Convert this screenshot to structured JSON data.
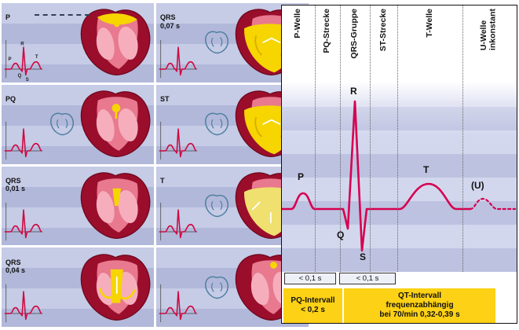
{
  "left_panel": {
    "panels": [
      {
        "label": "P",
        "sub": "",
        "phase": "atria",
        "outline_heart": false,
        "ecg_letters": true
      },
      {
        "label": "QRS",
        "sub": "0,07 s",
        "phase": "ventricles",
        "outline_heart": true,
        "ecg_letters": false
      },
      {
        "label": "PQ",
        "sub": "",
        "phase": "avnode",
        "outline_heart": true,
        "ecg_letters": false
      },
      {
        "label": "ST",
        "sub": "",
        "phase": "ventricles",
        "outline_heart": true,
        "ecg_letters": false
      },
      {
        "label": "QRS",
        "sub": "0,01 s",
        "phase": "septum-small",
        "outline_heart": false,
        "ecg_letters": false
      },
      {
        "label": "T",
        "sub": "",
        "phase": "ventricles-fading",
        "outline_heart": true,
        "ecg_letters": false
      },
      {
        "label": "QRS",
        "sub": "0,04 s",
        "phase": "septum-large",
        "outline_heart": false,
        "ecg_letters": false
      },
      {
        "label": "",
        "sub": "",
        "phase": "sanode",
        "outline_heart": true,
        "ecg_letters": false
      }
    ],
    "first_ecg_labels": [
      "R",
      "T",
      "P",
      "Q",
      "S"
    ]
  },
  "right_panel": {
    "column_headers": [
      "P-Welle",
      "PQ-Strecke",
      "QRS-Gruppe",
      "ST-Strecke",
      "T-Welle",
      "U-Welle\ninkonstant"
    ],
    "wave_labels": {
      "p": "P",
      "q": "Q",
      "r": "R",
      "s": "S",
      "t": "T",
      "u": "(U)"
    },
    "durations": {
      "p_wave": "< 0,1 s",
      "qrs": "< 0,1 s"
    },
    "pq_interval": {
      "line1": "PQ-Intervall",
      "line2": "< 0,2 s"
    },
    "qt_interval": {
      "line1": "QT-Intervall",
      "line2": "frequenzabhängig",
      "line3": "bei 70/min  0,32-0,39 s"
    }
  },
  "colors": {
    "ecg_red": "#d6004f",
    "highlight_yellow": "#f6d500",
    "interval_yellow": "#fcd116",
    "lavender": "#bcc1e0",
    "heart_dark_red": "#9a0e2c",
    "heart_pink": "#f0909f",
    "outline_blue": "#4b7e9e"
  }
}
